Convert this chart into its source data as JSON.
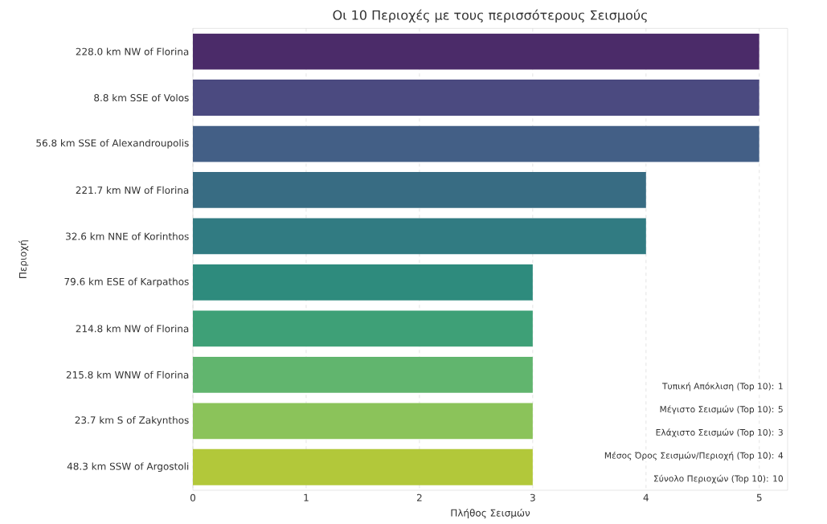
{
  "chart_data": {
    "type": "bar",
    "orientation": "horizontal",
    "title": "Οι 10 Περιοχές με τους περισσότερους Σεισμούς",
    "xlabel": "Πλήθος Σεισμών",
    "ylabel": "Περιοχή",
    "categories": [
      "228.0 km NW of Florina",
      "8.8 km SSE of Volos",
      "56.8 km SSE of Alexandroupolis",
      "221.7 km NW of Florina",
      "32.6 km NNE of Korinthos",
      "79.6 km ESE of Karpathos",
      "214.8 km NW of Florina",
      "215.8 km WNW of Florina",
      "23.7 km S of Zakynthos",
      "48.3 km SSW of Argostoli"
    ],
    "values": [
      5,
      5,
      5,
      4,
      4,
      3,
      3,
      3,
      3,
      3
    ],
    "colors": [
      "#4b2b69",
      "#4b4a80",
      "#435f86",
      "#386c83",
      "#317b82",
      "#2e8b7d",
      "#3ea077",
      "#61b56e",
      "#8bc35a",
      "#b2c83a"
    ],
    "xlim": [
      0,
      5.25
    ],
    "xticks": [
      0,
      1,
      2,
      3,
      4,
      5
    ],
    "grid": "x",
    "annotations": [
      "Τυπική Απόκλιση (Top 10): 1",
      "Μέγιστο Σεισμών (Top 10): 5",
      "Ελάχιστο Σεισμών (Top 10): 3",
      "Μέσος Όρος Σεισμών/Περιοχή (Top 10): 4",
      "Σύνολο Περιοχών (Top 10): 10"
    ]
  }
}
